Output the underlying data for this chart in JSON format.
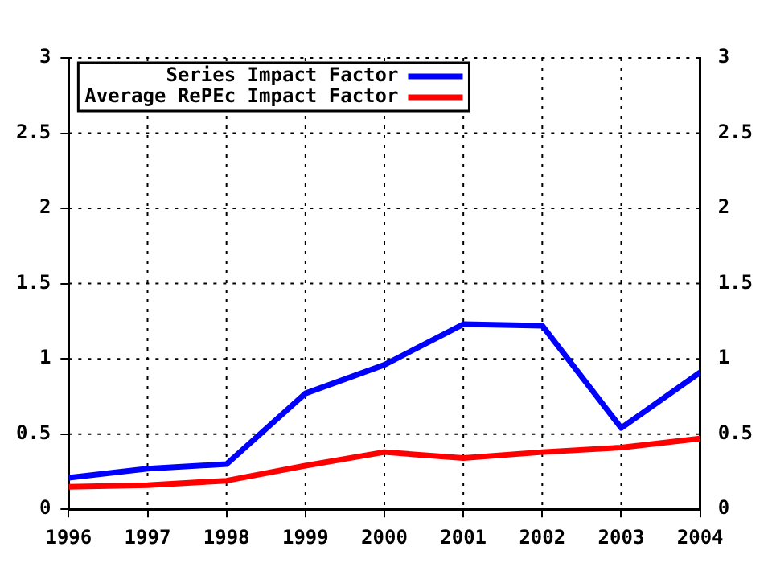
{
  "chart_data": {
    "type": "line",
    "x": [
      1996,
      1997,
      1998,
      1999,
      2000,
      2001,
      2002,
      2003,
      2004
    ],
    "series": [
      {
        "name": "Series Impact Factor",
        "color": "#0000ff",
        "values": [
          0.21,
          0.27,
          0.3,
          0.77,
          0.96,
          1.23,
          1.22,
          0.54,
          0.91
        ]
      },
      {
        "name": "Average RePEc Impact Factor",
        "color": "#ff0000",
        "values": [
          0.15,
          0.16,
          0.19,
          0.29,
          0.38,
          0.34,
          0.38,
          0.41,
          0.47
        ]
      }
    ],
    "xlim": [
      1996,
      2004
    ],
    "xticks": [
      1996,
      1997,
      1998,
      1999,
      2000,
      2001,
      2002,
      2003,
      2004
    ],
    "ylim": [
      0,
      3
    ],
    "yticks": [
      0,
      0.5,
      1,
      1.5,
      2,
      2.5,
      3
    ],
    "y2lim": [
      0,
      3
    ],
    "y2ticks": [
      0,
      0.5,
      1,
      1.5,
      2,
      2.5,
      3
    ],
    "grid": true,
    "legend": "top left",
    "marker": "none",
    "line_style": "solid"
  }
}
